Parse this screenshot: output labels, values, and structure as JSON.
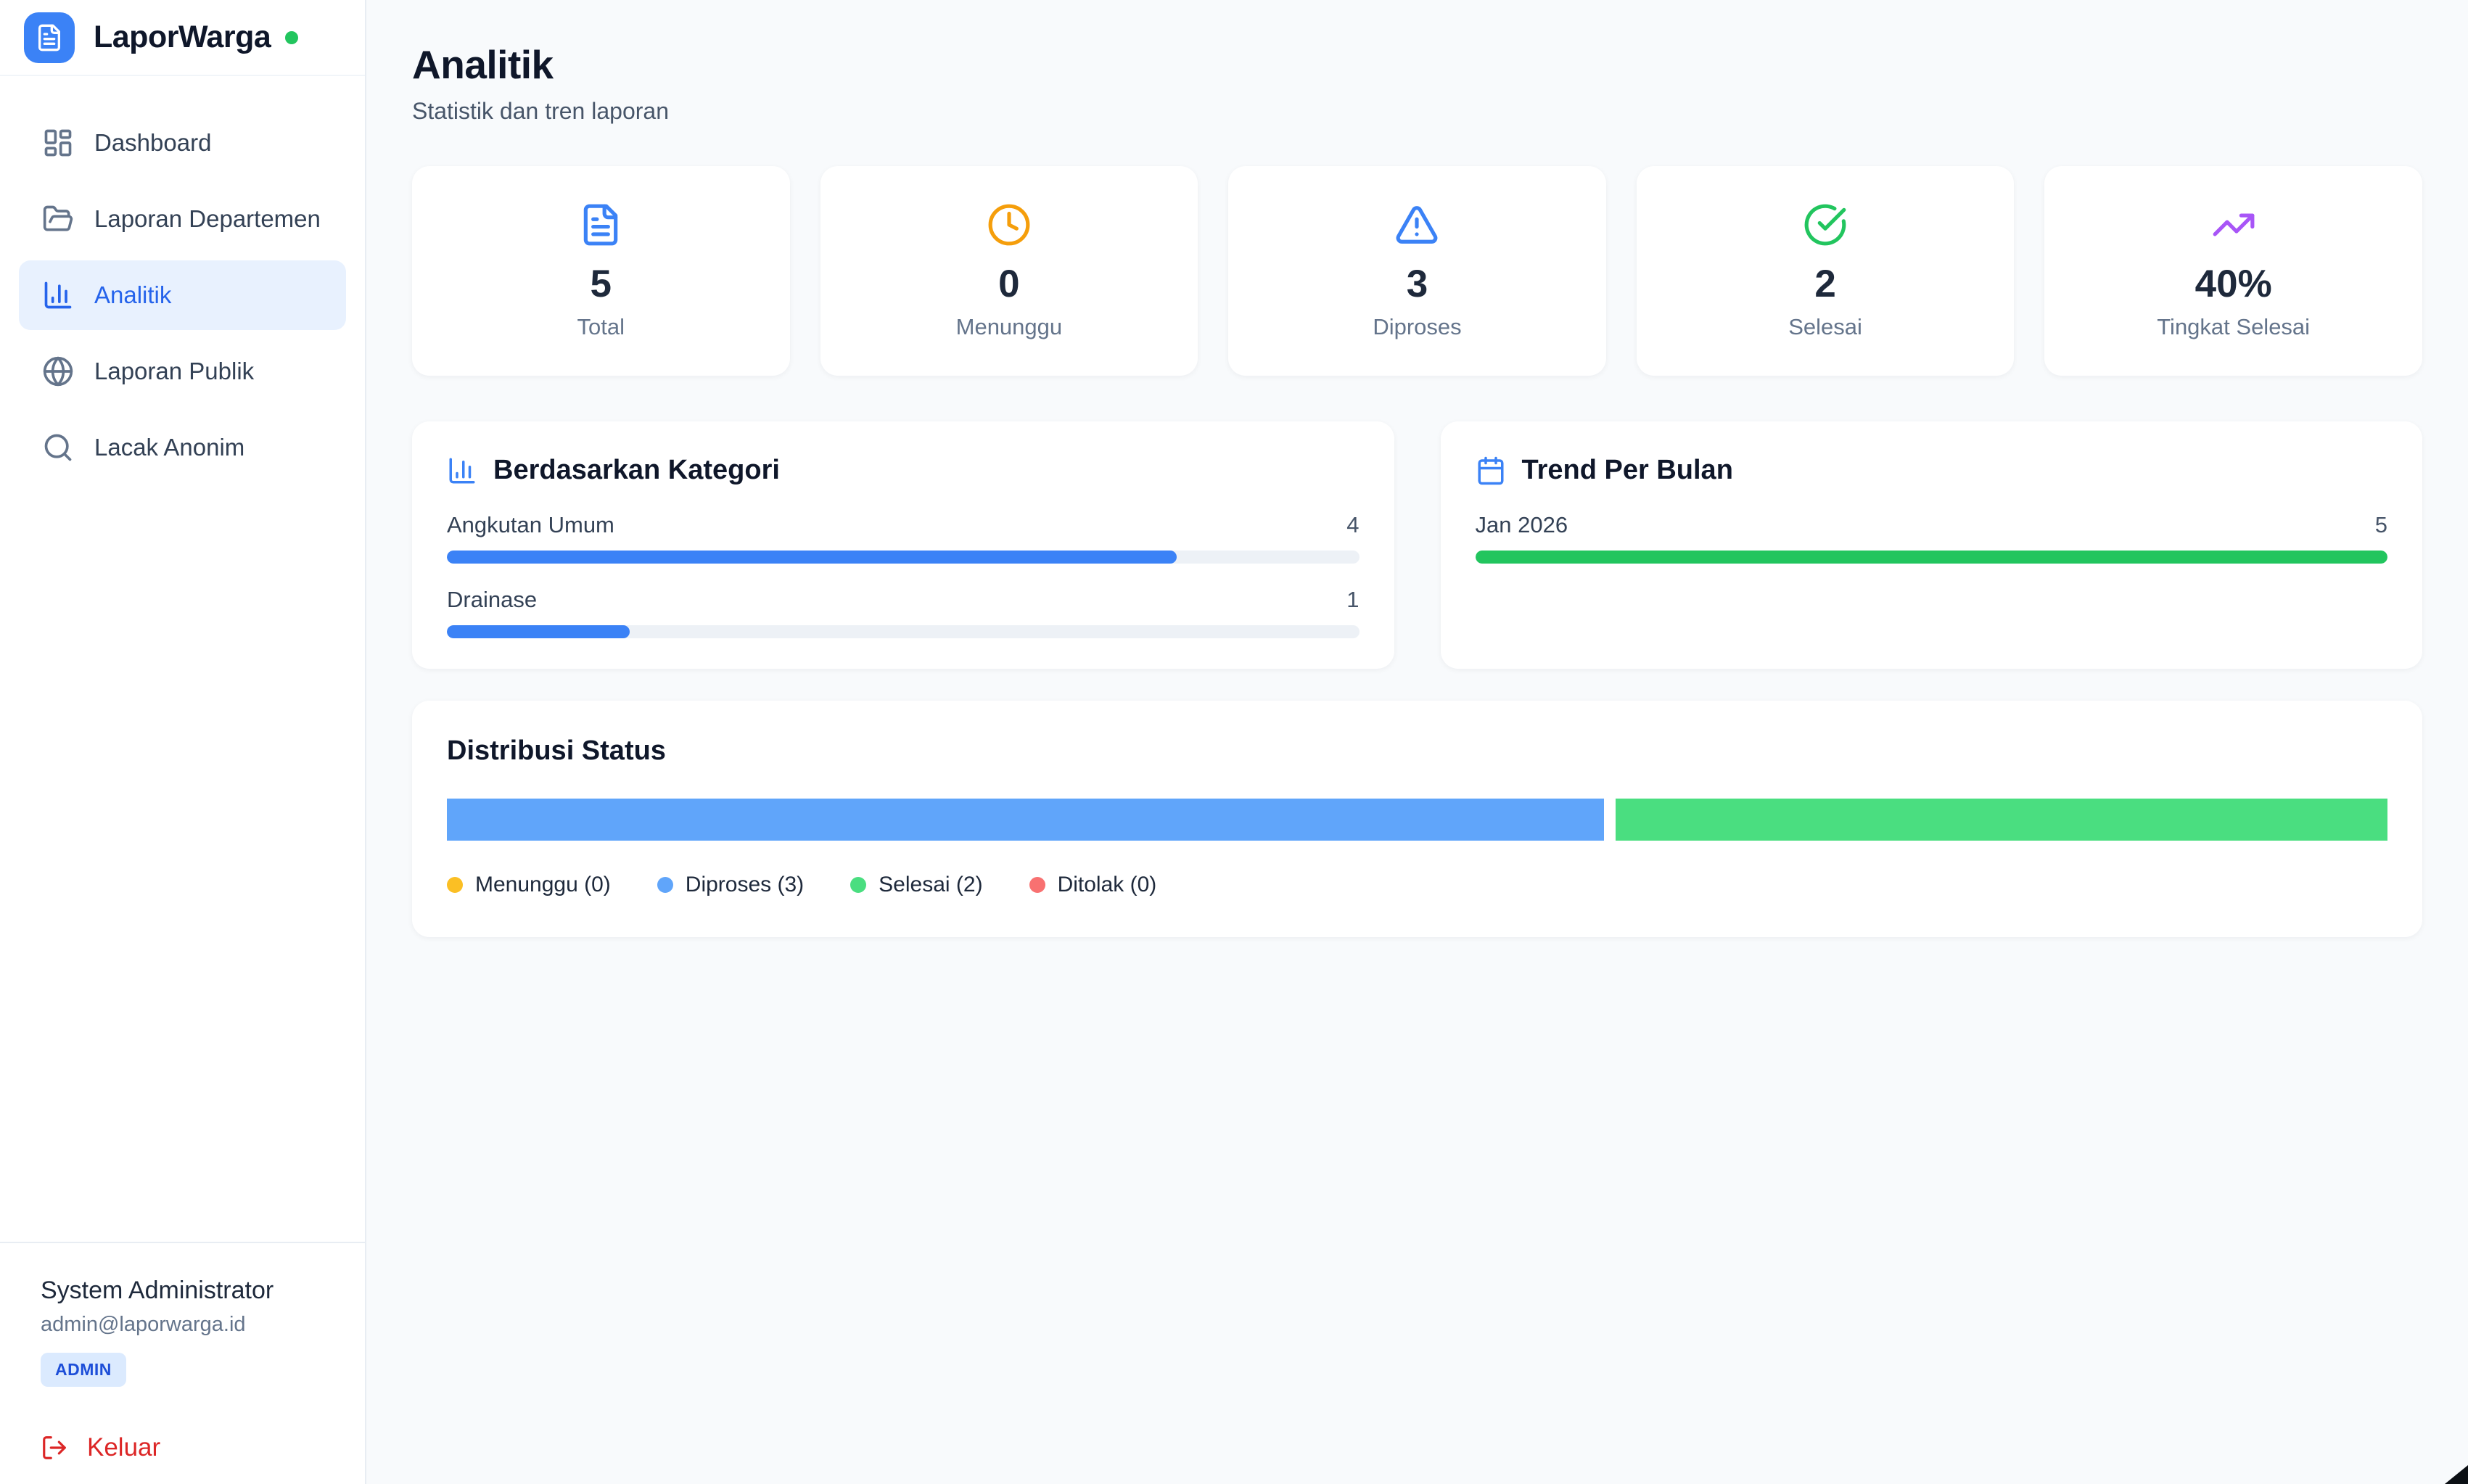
{
  "app": {
    "name": "LaporWarga",
    "online_dot_color": "#22c55e",
    "brand_color": "#3b82f6"
  },
  "sidebar": {
    "items": [
      {
        "label": "Dashboard",
        "icon": "dashboard",
        "active": false
      },
      {
        "label": "Laporan Departemen",
        "icon": "folder-open",
        "active": false
      },
      {
        "label": "Analitik",
        "icon": "bar-chart",
        "active": true
      },
      {
        "label": "Laporan Publik",
        "icon": "globe",
        "active": false
      },
      {
        "label": "Lacak Anonim",
        "icon": "search",
        "active": false
      }
    ],
    "user": {
      "name": "System Administrator",
      "email": "admin@laporwarga.id",
      "role_badge": "ADMIN"
    },
    "logout_label": "Keluar"
  },
  "header": {
    "title": "Analitik",
    "subtitle": "Statistik dan tren laporan"
  },
  "stats": [
    {
      "value": "5",
      "label": "Total",
      "icon": "file-text",
      "color": "#3b82f6"
    },
    {
      "value": "0",
      "label": "Menunggu",
      "icon": "clock",
      "color": "#f59e0b"
    },
    {
      "value": "3",
      "label": "Diproses",
      "icon": "alert-triangle",
      "color": "#3b82f6"
    },
    {
      "value": "2",
      "label": "Selesai",
      "icon": "check-circle",
      "color": "#22c55e"
    },
    {
      "value": "40%",
      "label": "Tingkat Selesai",
      "icon": "trending-up",
      "color": "#a855f7"
    }
  ],
  "panels": {
    "category": {
      "title": "Berdasarkan Kategori",
      "icon": "bar-chart",
      "rows": [
        {
          "label": "Angkutan Umum",
          "value": "4",
          "pct": 80,
          "color": "#3b82f6"
        },
        {
          "label": "Drainase",
          "value": "1",
          "pct": 20,
          "color": "#3b82f6"
        }
      ]
    },
    "trend": {
      "title": "Trend Per Bulan",
      "icon": "calendar",
      "rows": [
        {
          "label": "Jan 2026",
          "value": "5",
          "pct": 100,
          "color": "#22c55e"
        }
      ]
    }
  },
  "status": {
    "title": "Distribusi Status",
    "segments": [
      {
        "label": "Menunggu",
        "count": 0,
        "color": "#fbbf24"
      },
      {
        "label": "Diproses",
        "count": 3,
        "color": "#60a5fa"
      },
      {
        "label": "Selesai",
        "count": 2,
        "color": "#4ade80"
      },
      {
        "label": "Ditolak",
        "count": 0,
        "color": "#f87171"
      }
    ],
    "legend": [
      {
        "label": "Menunggu (0)",
        "color": "#fbbf24"
      },
      {
        "label": "Diproses (3)",
        "color": "#60a5fa"
      },
      {
        "label": "Selesai (2)",
        "color": "#4ade80"
      },
      {
        "label": "Ditolak (0)",
        "color": "#f87171"
      }
    ]
  }
}
